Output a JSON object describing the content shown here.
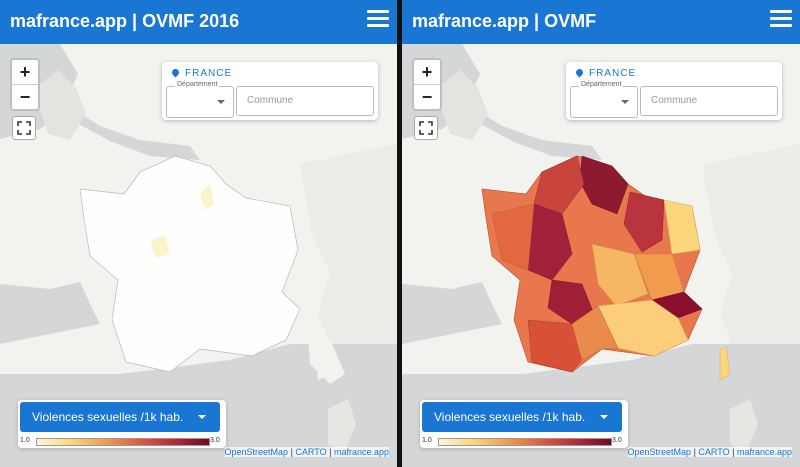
{
  "left": {
    "title": "mafrance.app | OVMF 2016",
    "country": "FRANCE",
    "dept_label": "Département",
    "commune_placeholder": "Commune",
    "zoom_in": "+",
    "zoom_out": "−",
    "indicator": "Violences sexuelles /1k hab.",
    "scale_min": "1.0",
    "scale_max": "3.0",
    "attr_osm": "OpenStreetMap",
    "attr_carto": "CARTO",
    "attr_app": "mafrance.app",
    "attr_sep": " | "
  },
  "right": {
    "title": "mafrance.app | OVMF",
    "country": "FRANCE",
    "dept_label": "Département",
    "commune_placeholder": "Commune",
    "zoom_in": "+",
    "zoom_out": "−",
    "indicator": "Violences sexuelles /1k hab.",
    "scale_min": "1.0",
    "scale_max": "3.0",
    "attr_osm": "OpenStreetMap",
    "attr_carto": "CARTO",
    "attr_app": "mafrance.app",
    "attr_sep": " | "
  },
  "colors": {
    "brand": "#1976d2",
    "land": "#f2f2ef",
    "sea": "#d4d6d8",
    "scale_low": "#fff6d8",
    "scale_high": "#6d0a25"
  },
  "icons": [
    "menu-icon",
    "location-pin-icon",
    "fullscreen-icon",
    "chevron-down-icon"
  ]
}
